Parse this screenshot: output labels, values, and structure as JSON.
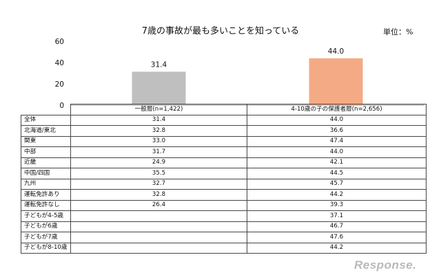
{
  "chart_data": {
    "type": "bar",
    "title": "7歳の事故が最も多いことを知っている",
    "unit_label": "単位：%",
    "ylim": [
      0,
      60
    ],
    "yticks": [
      "0",
      "20",
      "40",
      "60"
    ],
    "grid": false,
    "categories": [
      "一般層(n=1,422)",
      "4-10歳の子の保護者層(n=2,656)"
    ],
    "values": [
      31.4,
      44.0
    ],
    "value_labels": [
      "31.4",
      "44.0"
    ],
    "colors": [
      "#bfbfbf",
      "#f4ab85"
    ]
  },
  "table": {
    "headers": [
      "",
      "一般層(n=1,422)",
      "4-10歳の子の保護者層(n=2,656)"
    ],
    "rows": [
      {
        "label": "全体",
        "general": "31.4",
        "parents": "44.0"
      },
      {
        "label": "北海道/東北",
        "general": "32.8",
        "parents": "36.6"
      },
      {
        "label": "関東",
        "general": "33.0",
        "parents": "47.4"
      },
      {
        "label": "中部",
        "general": "31.7",
        "parents": "44.0"
      },
      {
        "label": "近畿",
        "general": "24.9",
        "parents": "42.1"
      },
      {
        "label": "中国/四国",
        "general": "35.5",
        "parents": "44.5"
      },
      {
        "label": "九州",
        "general": "32.7",
        "parents": "45.7"
      },
      {
        "label": "運転免許あり",
        "general": "32.8",
        "parents": "44.2"
      },
      {
        "label": "運転免許なし",
        "general": "26.4",
        "parents": "39.3"
      },
      {
        "label": "子どもが4-5歳",
        "general": "",
        "parents": "37.1"
      },
      {
        "label": "子どもが6歳",
        "general": "",
        "parents": "46.7"
      },
      {
        "label": "子どもが7歳",
        "general": "",
        "parents": "47.6"
      },
      {
        "label": "子どもが8-10歳",
        "general": "",
        "parents": "44.2"
      }
    ]
  },
  "watermark": "Response."
}
